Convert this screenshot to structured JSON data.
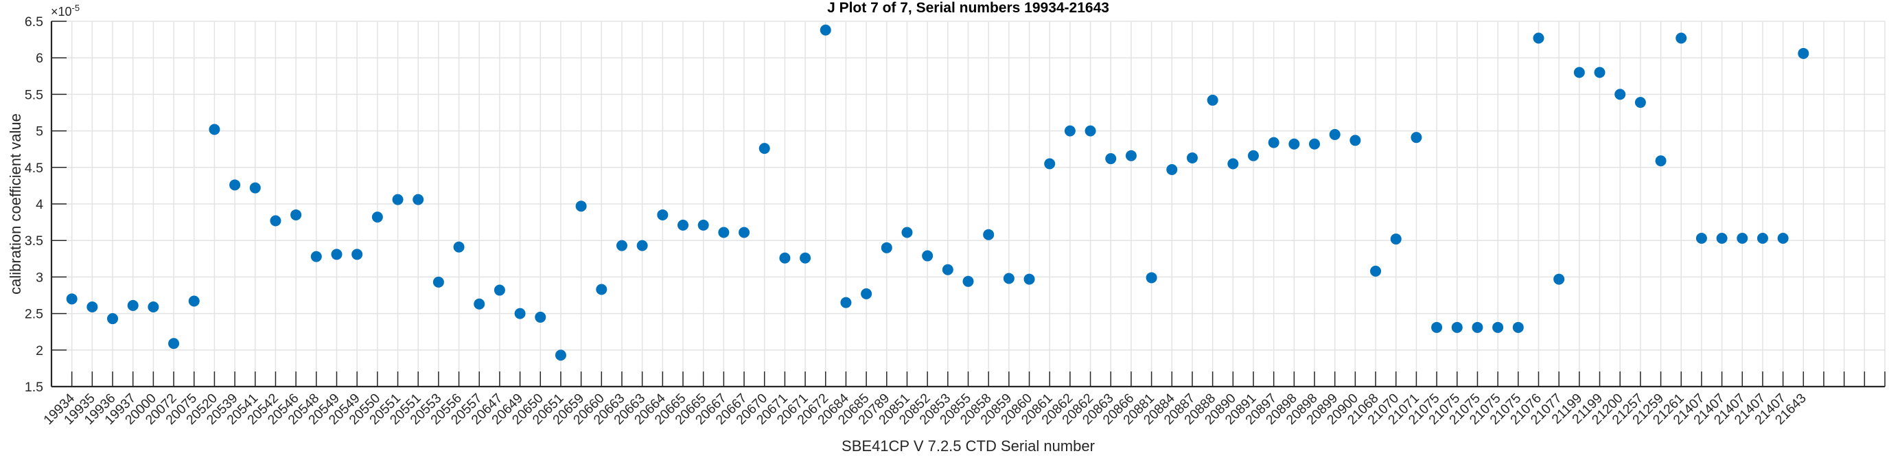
{
  "figure": {
    "title": "J Plot 7 of 7, Serial numbers 19934-21643",
    "y_axis": {
      "label": "calibration coefficient value",
      "exponent_base": "×10",
      "exponent_power": "-5"
    },
    "x_axis": {
      "label": "SBE41CP V 7.2.5 CTD Serial number"
    }
  },
  "colors": {
    "marker": "#0072BD",
    "axis": "#262626",
    "grid": "#e3e3e3",
    "title": "#000000",
    "background": "#ffffff"
  },
  "chart_data": {
    "type": "scatter",
    "title": "J Plot 7 of 7, Serial numbers 19934-21643",
    "xlabel": "SBE41CP V 7.2.5 CTD Serial number",
    "ylabel": "calibration coefficient value",
    "y_scale_label": "×10^-5",
    "ylim": [
      1.5,
      6.5
    ],
    "yticks": [
      "1.5",
      "2",
      "2.5",
      "3",
      "3.5",
      "4",
      "4.5",
      "5",
      "5.5",
      "6",
      "6.5"
    ],
    "grid": true,
    "legend": "none",
    "marker_color": "#0072BD",
    "categories": [
      "19934",
      "19935",
      "19936",
      "19937",
      "20000",
      "20072",
      "20075",
      "20520",
      "20539",
      "20541",
      "20542",
      "20546",
      "20548",
      "20549",
      "20549",
      "20550",
      "20551",
      "20551",
      "20553",
      "20556",
      "20557",
      "20647",
      "20649",
      "20650",
      "20651",
      "20659",
      "20660",
      "20663",
      "20663",
      "20664",
      "20665",
      "20665",
      "20667",
      "20667",
      "20670",
      "20671",
      "20671",
      "20672",
      "20684",
      "20685",
      "20789",
      "20851",
      "20852",
      "20853",
      "20855",
      "20858",
      "20859",
      "20860",
      "20861",
      "20862",
      "20862",
      "20863",
      "20866",
      "20881",
      "20884",
      "20887",
      "20888",
      "20890",
      "20891",
      "20897",
      "20898",
      "20898",
      "20899",
      "20900",
      "21068",
      "21070",
      "21071",
      "21075",
      "21075",
      "21075",
      "21075",
      "21075",
      "21076",
      "21077",
      "21199",
      "21199",
      "21200",
      "21257",
      "21259",
      "21261",
      "21407",
      "21407",
      "21407",
      "21407",
      "21407",
      "21643"
    ],
    "values": [
      2.7,
      2.59,
      2.43,
      2.61,
      2.59,
      2.09,
      2.67,
      5.02,
      4.26,
      4.22,
      3.77,
      3.85,
      3.28,
      3.31,
      3.31,
      3.82,
      4.06,
      4.06,
      2.93,
      3.41,
      2.63,
      2.82,
      2.5,
      2.45,
      1.93,
      3.97,
      2.83,
      3.43,
      3.43,
      3.85,
      3.71,
      3.71,
      3.61,
      3.61,
      4.76,
      3.26,
      3.26,
      6.38,
      2.65,
      2.77,
      3.4,
      3.61,
      3.29,
      3.1,
      2.94,
      3.58,
      2.98,
      2.97,
      4.55,
      5.0,
      5.0,
      4.62,
      4.66,
      2.99,
      4.47,
      4.63,
      5.42,
      4.55,
      4.66,
      4.84,
      4.82,
      4.82,
      4.95,
      4.87,
      3.08,
      3.52,
      4.91,
      2.31,
      2.31,
      2.31,
      2.31,
      2.31,
      6.27,
      2.97,
      5.8,
      5.8,
      5.5,
      5.39,
      4.59,
      6.27,
      3.53,
      3.53,
      3.53,
      3.53,
      3.53,
      6.06
    ]
  }
}
